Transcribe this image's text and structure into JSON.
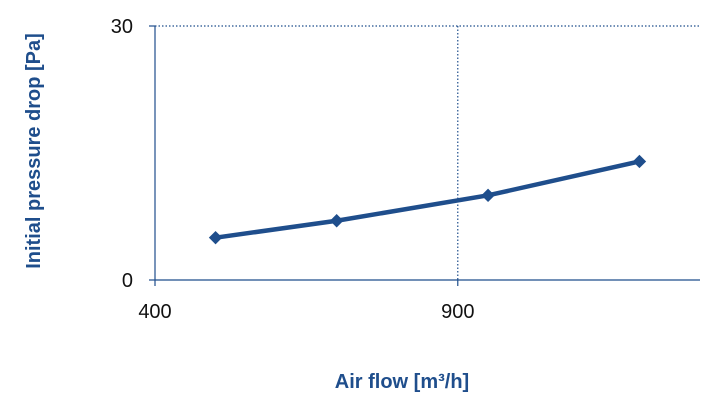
{
  "colors": {
    "series": "#1F4E8C",
    "axis": "#1F4E8C",
    "grid": "#1F4E8C",
    "label": "#1F4E8C",
    "tick_text": "#111111"
  },
  "chart_data": {
    "type": "line",
    "title": "",
    "xlabel": "Air flow [m³/h]",
    "ylabel": "Initial pressure drop [Pa]",
    "xlim": [
      400,
      1300
    ],
    "ylim": [
      0,
      30
    ],
    "xticks": [
      400,
      900
    ],
    "yticks": [
      0,
      30
    ],
    "xtick_labels": [
      "400",
      "900"
    ],
    "ytick_labels": [
      "0",
      "30"
    ],
    "grid": {
      "vertical_at": [
        900
      ],
      "horizontal_at": [
        30
      ],
      "style": "dotted"
    },
    "legend": "none",
    "series": [
      {
        "marker": "diamond",
        "points": [
          {
            "x": 500,
            "y": 5
          },
          {
            "x": 700,
            "y": 7
          },
          {
            "x": 950,
            "y": 10
          },
          {
            "x": 1200,
            "y": 14
          }
        ]
      }
    ]
  }
}
